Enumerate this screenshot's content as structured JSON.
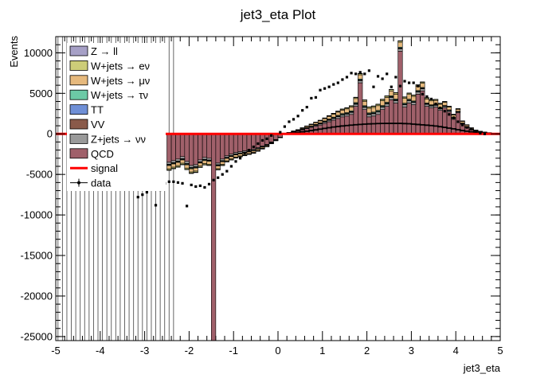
{
  "chart_data": {
    "type": "bar",
    "title": "jet3_eta Plot",
    "xlabel": "jet3_eta",
    "ylabel": "Events",
    "xlim": [
      -5,
      5
    ],
    "ylim": [
      -25500,
      12000
    ],
    "x_ticks": [
      "-5",
      "-4",
      "-3",
      "-2",
      "-1",
      "0",
      "1",
      "2",
      "3",
      "4",
      "5"
    ],
    "y_ticks": [
      "10000",
      "5000",
      "0",
      "-5000",
      "-10000",
      "-15000",
      "-20000",
      "-25000"
    ],
    "y_tick_values": [
      10000,
      5000,
      0,
      -5000,
      -10000,
      -15000,
      -20000,
      -25000
    ],
    "legend_position": "top-left",
    "stack_order": [
      "QCD",
      "Z+jets → νν",
      "VV",
      "TT",
      "W+jets → τν",
      "W+jets → μν",
      "W+jets → eν",
      "Z → ll"
    ],
    "legend": [
      {
        "label": "Z → ll",
        "color": "#a6a0c6",
        "kind": "fill"
      },
      {
        "label": "W+jets → eν",
        "color": "#cdcd78",
        "kind": "fill"
      },
      {
        "label": "W+jets → μν",
        "color": "#e6b97d",
        "kind": "fill"
      },
      {
        "label": "W+jets → τν",
        "color": "#6ccaa6",
        "kind": "fill"
      },
      {
        "label": "TT",
        "color": "#6f8fd6",
        "kind": "fill"
      },
      {
        "label": "VV",
        "color": "#8a5a4a",
        "kind": "fill"
      },
      {
        "label": "Z+jets → νν",
        "color": "#9a9a9a",
        "kind": "fill"
      },
      {
        "label": "QCD",
        "color": "#a0606a",
        "kind": "fill"
      },
      {
        "label": "signal",
        "color": "#ff0000",
        "kind": "line"
      },
      {
        "label": "data",
        "color": "#000000",
        "kind": "marker"
      }
    ],
    "bin_edges_range": [
      -5,
      5
    ],
    "n_bins": 100,
    "series": [
      {
        "name": "QCD",
        "color": "#a0606a",
        "values": [
          0,
          0,
          0,
          0,
          0,
          0,
          0,
          0,
          0,
          0,
          0,
          0,
          0,
          0,
          0,
          0,
          0,
          0,
          0,
          0,
          0,
          0,
          0,
          0,
          0,
          -3500,
          -3300,
          -3100,
          -2800,
          -3400,
          -3900,
          -3800,
          -3200,
          -2900,
          -3000,
          -25500,
          -3600,
          -3100,
          -2700,
          -2500,
          -2300,
          -2200,
          -2100,
          -2000,
          -1900,
          -1700,
          -1500,
          -1300,
          -1000,
          -700,
          -400,
          -50,
          150,
          250,
          350,
          500,
          650,
          800,
          950,
          1100,
          1300,
          1500,
          1700,
          1900,
          2100,
          2200,
          2400,
          3400,
          6300,
          3000,
          2100,
          2200,
          2400,
          3000,
          3400,
          4200,
          3800,
          10200,
          3300,
          3800,
          3600,
          4900,
          5300,
          3400,
          3200,
          3300,
          2900,
          3200,
          2700,
          1800,
          2600,
          1200,
          800,
          500,
          300,
          200,
          150,
          100,
          50,
          20
        ]
      },
      {
        "name": "Z+jets → νν",
        "color": "#9a9a9a",
        "values": [
          0,
          0,
          0,
          0,
          0,
          0,
          0,
          0,
          0,
          0,
          0,
          0,
          0,
          0,
          0,
          0,
          0,
          0,
          0,
          0,
          0,
          0,
          0,
          0,
          0,
          -250,
          -250,
          -260,
          -260,
          -260,
          -250,
          -250,
          -240,
          -240,
          -230,
          -220,
          -210,
          -200,
          -190,
          -180,
          -170,
          -160,
          -150,
          -140,
          -130,
          -110,
          -90,
          -70,
          -50,
          -30,
          -10,
          0,
          10,
          30,
          50,
          70,
          90,
          110,
          130,
          150,
          170,
          190,
          210,
          220,
          230,
          240,
          250,
          260,
          270,
          280,
          290,
          290,
          300,
          300,
          300,
          300,
          300,
          300,
          290,
          290,
          280,
          270,
          260,
          250,
          240,
          230,
          210,
          190,
          170,
          150,
          120,
          100,
          80,
          60,
          40,
          30,
          20,
          10,
          5,
          2
        ]
      },
      {
        "name": "VV",
        "color": "#8a5a4a",
        "values": [
          0,
          0,
          0,
          0,
          0,
          0,
          0,
          0,
          0,
          0,
          0,
          0,
          0,
          0,
          0,
          0,
          0,
          0,
          0,
          0,
          0,
          0,
          0,
          0,
          0,
          -40,
          -40,
          -40,
          -40,
          -40,
          -40,
          -40,
          -40,
          -40,
          -40,
          -40,
          -38,
          -36,
          -34,
          -32,
          -30,
          -28,
          -26,
          -24,
          -22,
          -20,
          -16,
          -12,
          -8,
          -5,
          -2,
          0,
          2,
          5,
          8,
          12,
          16,
          20,
          24,
          28,
          32,
          36,
          40,
          42,
          44,
          46,
          48,
          50,
          50,
          50,
          50,
          50,
          50,
          50,
          50,
          50,
          50,
          50,
          50,
          48,
          46,
          44,
          42,
          40,
          38,
          36,
          32,
          28,
          24,
          20,
          16,
          12,
          10,
          8,
          6,
          4,
          3,
          2,
          1,
          0
        ]
      },
      {
        "name": "TT",
        "color": "#6f8fd6",
        "values": [
          0,
          0,
          0,
          0,
          0,
          0,
          0,
          0,
          0,
          0,
          0,
          0,
          0,
          0,
          0,
          0,
          0,
          0,
          0,
          0,
          0,
          0,
          0,
          0,
          0,
          -40,
          -40,
          -40,
          -40,
          -40,
          -40,
          -40,
          -40,
          -40,
          -40,
          -40,
          -38,
          -36,
          -34,
          -32,
          -30,
          -28,
          -26,
          -24,
          -22,
          -20,
          -16,
          -12,
          -8,
          -5,
          -2,
          0,
          2,
          5,
          8,
          12,
          16,
          20,
          24,
          28,
          32,
          36,
          40,
          42,
          44,
          46,
          48,
          50,
          50,
          50,
          50,
          50,
          50,
          50,
          50,
          50,
          50,
          50,
          50,
          48,
          46,
          44,
          42,
          40,
          38,
          36,
          32,
          28,
          24,
          20,
          16,
          12,
          10,
          8,
          6,
          4,
          3,
          2,
          1,
          0
        ]
      },
      {
        "name": "W+jets → τν",
        "color": "#6ccaa6",
        "values": [
          0,
          0,
          0,
          0,
          0,
          0,
          0,
          0,
          0,
          0,
          0,
          0,
          0,
          0,
          0,
          0,
          0,
          0,
          0,
          0,
          0,
          0,
          0,
          0,
          0,
          -80,
          -80,
          -80,
          -80,
          -80,
          -80,
          -80,
          -80,
          -78,
          -76,
          -74,
          -72,
          -70,
          -66,
          -62,
          -58,
          -54,
          -50,
          -46,
          -42,
          -38,
          -32,
          -24,
          -16,
          -10,
          -4,
          0,
          4,
          10,
          16,
          24,
          32,
          40,
          48,
          56,
          64,
          72,
          80,
          84,
          88,
          92,
          96,
          100,
          100,
          100,
          100,
          100,
          100,
          100,
          100,
          100,
          100,
          100,
          100,
          96,
          92,
          88,
          84,
          80,
          76,
          72,
          64,
          56,
          48,
          40,
          32,
          24,
          20,
          16,
          12,
          8,
          6,
          4,
          2,
          0
        ]
      },
      {
        "name": "W+jets → μν",
        "color": "#e6b97d",
        "values": [
          0,
          0,
          0,
          0,
          0,
          0,
          0,
          0,
          0,
          0,
          0,
          0,
          0,
          0,
          0,
          0,
          0,
          0,
          0,
          0,
          0,
          0,
          0,
          0,
          0,
          -400,
          -400,
          -400,
          -400,
          -400,
          -390,
          -380,
          -370,
          -360,
          -350,
          -340,
          -330,
          -320,
          -300,
          -280,
          -260,
          -240,
          -220,
          -200,
          -180,
          -160,
          -130,
          -100,
          -70,
          -40,
          -15,
          0,
          15,
          40,
          70,
          100,
          130,
          160,
          200,
          240,
          280,
          320,
          360,
          400,
          430,
          460,
          480,
          500,
          520,
          540,
          560,
          570,
          580,
          590,
          600,
          600,
          600,
          600,
          590,
          580,
          560,
          540,
          520,
          500,
          480,
          450,
          420,
          380,
          340,
          300,
          250,
          200,
          160,
          120,
          90,
          60,
          40,
          25,
          12,
          5
        ]
      },
      {
        "name": "W+jets → eν",
        "color": "#cdcd78",
        "values": [
          0,
          0,
          0,
          0,
          0,
          0,
          0,
          0,
          0,
          0,
          0,
          0,
          0,
          0,
          0,
          0,
          0,
          0,
          0,
          0,
          0,
          0,
          0,
          0,
          0,
          -150,
          -150,
          -150,
          -150,
          -150,
          -145,
          -140,
          -135,
          -130,
          -125,
          -120,
          -115,
          -110,
          -100,
          -95,
          -90,
          -85,
          -80,
          -70,
          -60,
          -55,
          -45,
          -35,
          -25,
          -15,
          -5,
          0,
          5,
          15,
          25,
          35,
          45,
          55,
          65,
          75,
          85,
          95,
          105,
          115,
          125,
          135,
          145,
          150,
          155,
          160,
          165,
          170,
          175,
          175,
          175,
          175,
          175,
          175,
          170,
          165,
          160,
          155,
          150,
          145,
          140,
          130,
          120,
          110,
          100,
          90,
          75,
          60,
          50,
          40,
          30,
          20,
          15,
          10,
          5,
          2
        ]
      },
      {
        "name": "Z → ll",
        "color": "#a6a0c6",
        "values": [
          0,
          0,
          0,
          0,
          0,
          0,
          0,
          0,
          0,
          0,
          0,
          0,
          0,
          0,
          0,
          0,
          0,
          0,
          0,
          0,
          0,
          0,
          0,
          0,
          0,
          -20,
          -20,
          -20,
          -20,
          -20,
          -20,
          -20,
          -20,
          -20,
          -20,
          -20,
          -18,
          -16,
          -14,
          -12,
          -10,
          -9,
          -8,
          -7,
          -6,
          -5,
          -4,
          -3,
          -2,
          -1,
          0,
          0,
          1,
          2,
          3,
          4,
          5,
          6,
          7,
          8,
          9,
          10,
          11,
          12,
          13,
          14,
          15,
          16,
          17,
          18,
          19,
          20,
          20,
          20,
          20,
          20,
          20,
          20,
          20,
          20,
          20,
          20,
          20,
          18,
          16,
          14,
          12,
          10,
          8,
          6,
          5,
          4,
          3,
          2,
          1,
          1,
          0,
          0,
          0,
          0
        ]
      },
      {
        "name": "signal",
        "color": "#ff0000",
        "values": [
          0,
          0,
          0,
          0,
          0,
          0,
          0,
          0,
          0,
          0,
          0,
          0,
          0,
          0,
          0,
          0,
          0,
          0,
          0,
          0,
          0,
          0,
          0,
          0,
          0,
          0,
          0,
          0,
          0,
          0,
          0,
          0,
          0,
          0,
          0,
          0,
          0,
          0,
          0,
          0,
          0,
          0,
          0,
          0,
          0,
          0,
          0,
          0,
          0,
          0,
          0,
          0,
          0,
          0,
          0,
          0,
          0,
          0,
          0,
          0,
          0,
          0,
          0,
          0,
          0,
          0,
          0,
          0,
          0,
          0,
          0,
          0,
          0,
          0,
          0,
          0,
          0,
          0,
          0,
          0,
          0,
          0,
          0,
          0,
          0,
          0,
          0,
          0,
          0,
          0,
          0,
          0,
          0,
          0,
          0,
          0,
          0,
          0,
          0,
          0
        ]
      }
    ],
    "data_points": {
      "x": [
        -3.15,
        -3.05,
        -2.95,
        -2.85,
        -2.75,
        -2.65,
        -2.55,
        -2.45,
        -2.35,
        -2.25,
        -2.15,
        -2.05,
        -1.95,
        -1.85,
        -1.75,
        -1.65,
        -1.55,
        -1.45,
        -1.35,
        -1.25,
        -1.15,
        -1.05,
        -0.95,
        -0.85,
        -0.75,
        -0.65,
        -0.55,
        -0.45,
        -0.35,
        -0.25,
        -0.15,
        0.05,
        0.15,
        0.25,
        0.35,
        0.45,
        0.55,
        0.65,
        0.75,
        0.85,
        0.95,
        1.05,
        1.15,
        1.25,
        1.35,
        1.45,
        1.55,
        1.65,
        1.75,
        1.85,
        1.95,
        2.05,
        2.15,
        2.25,
        2.35,
        2.45,
        2.55,
        2.65,
        2.75,
        2.85,
        2.95,
        3.05,
        3.15,
        3.25,
        3.35,
        3.45,
        3.55,
        3.65,
        3.75,
        3.85,
        3.95,
        4.05,
        4.15,
        4.25,
        4.35,
        4.45,
        4.55,
        4.65
      ],
      "y": [
        -7800,
        -7500,
        -7200,
        -6800,
        -8800,
        -6900,
        -6100,
        -5900,
        -5900,
        -6000,
        -6100,
        -8900,
        -6300,
        -6500,
        -6400,
        -6600,
        -6200,
        -5700,
        -5400,
        -5000,
        -4600,
        -4000,
        -3400,
        -3000,
        -2400,
        -2000,
        -1600,
        -1200,
        -800,
        -600,
        -200,
        200,
        900,
        1500,
        1800,
        2200,
        2900,
        3300,
        4400,
        4500,
        5400,
        5600,
        5800,
        6100,
        6300,
        6700,
        7000,
        7500,
        7400,
        7600,
        7400,
        7800,
        5800,
        7100,
        6800,
        7400,
        5800,
        7000,
        5900,
        6500,
        6300,
        6300,
        5900,
        4900,
        4600,
        4300,
        3700,
        3200,
        2800,
        2400,
        2000,
        1500,
        1100,
        800,
        600,
        300,
        100,
        0
      ]
    },
    "annotations": []
  }
}
